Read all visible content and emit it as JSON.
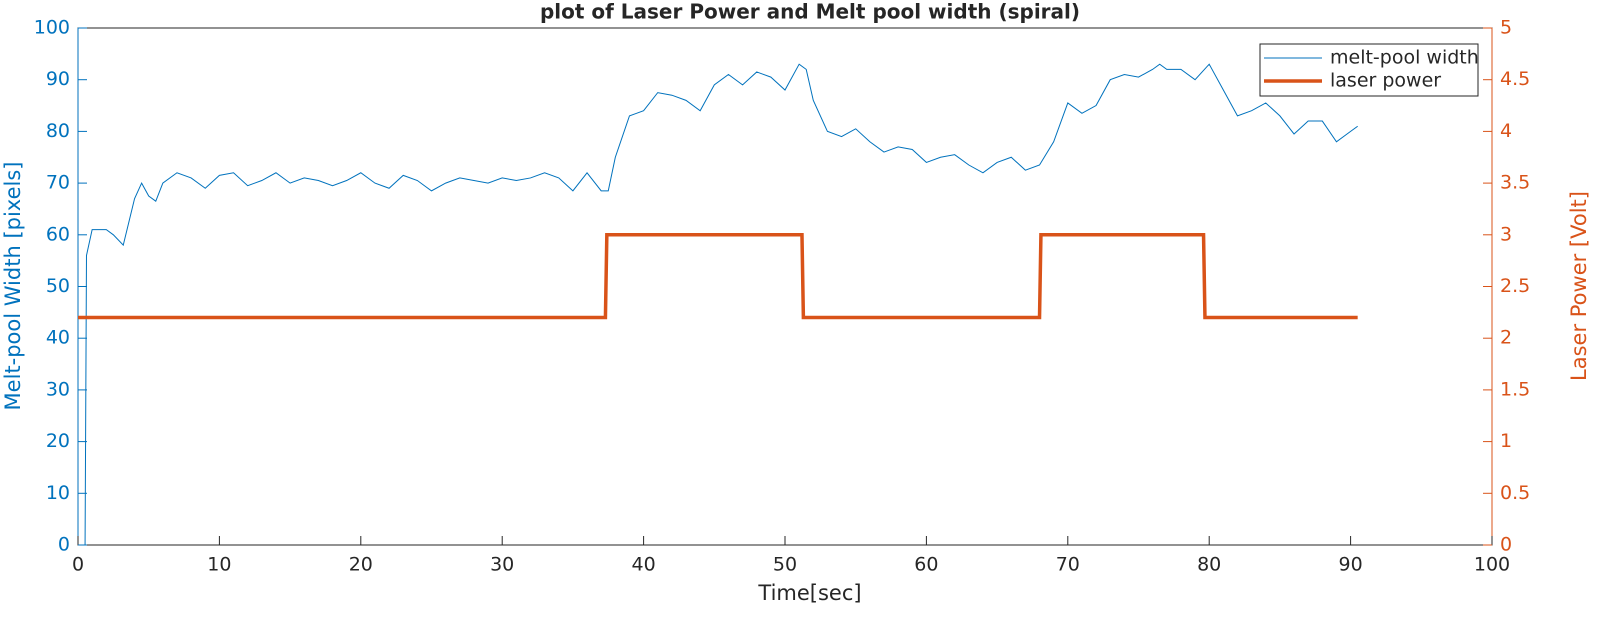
{
  "chart_data": {
    "type": "line",
    "title": "plot of Laser Power and Melt pool width (spiral)",
    "xlabel": "Time[sec]",
    "ylabel": "Melt-pool Width [pixels]",
    "y2label": "Laser Power [Volt]",
    "xlim": [
      0,
      100
    ],
    "xticks": [
      0,
      10,
      20,
      30,
      40,
      50,
      60,
      70,
      80,
      90,
      100
    ],
    "ylim": [
      0,
      100
    ],
    "yticks": [
      0,
      10,
      20,
      30,
      40,
      50,
      60,
      70,
      80,
      90,
      100
    ],
    "y2lim": [
      0,
      5
    ],
    "y2ticks": [
      0,
      0.5,
      1,
      1.5,
      2,
      2.5,
      3,
      3.5,
      4,
      4.5,
      5
    ],
    "legend": "upper right",
    "grid": false,
    "series": [
      {
        "name": "melt-pool width",
        "color": "#0072bd",
        "axis": "y",
        "width": 1,
        "x": [
          0.5,
          0.6,
          1,
          2,
          2.5,
          3.2,
          4,
          4.5,
          5,
          5.5,
          6,
          7,
          8,
          9,
          10,
          11,
          12,
          13,
          14,
          15,
          16,
          17,
          18,
          19,
          20,
          21,
          22,
          23,
          24,
          25,
          26,
          27,
          28,
          29,
          30,
          31,
          32,
          33,
          34,
          35,
          36,
          37,
          37.5,
          38,
          39,
          40,
          41,
          42,
          43,
          44,
          45,
          46,
          47,
          48,
          49,
          50,
          51,
          51.5,
          52,
          53,
          54,
          55,
          56,
          57,
          58,
          59,
          60,
          61,
          62,
          63,
          64,
          65,
          66,
          67,
          68,
          69,
          70,
          71,
          72,
          73,
          74,
          75,
          76,
          76.5,
          77,
          78,
          79,
          80,
          81,
          82,
          83,
          84,
          85,
          86,
          87,
          88,
          89,
          90,
          90.5
        ],
        "values": [
          0,
          56,
          61,
          61,
          60,
          58,
          67,
          70,
          67.5,
          66.5,
          70,
          72,
          71,
          69,
          71.5,
          72,
          69.5,
          70.5,
          72,
          70,
          71,
          70.5,
          69.5,
          70.5,
          72,
          70,
          69,
          71.5,
          70.5,
          68.5,
          70,
          71,
          70.5,
          70,
          71,
          70.5,
          71,
          72,
          71,
          68.5,
          72,
          68.5,
          68.5,
          75,
          83,
          84,
          87.5,
          87,
          86,
          84,
          89,
          91,
          89,
          91.5,
          90.5,
          88,
          93,
          92,
          86,
          80,
          79,
          80.5,
          78,
          76,
          77,
          76.5,
          74,
          75,
          75.5,
          73.5,
          72,
          74,
          75,
          72.5,
          73.5,
          78,
          85.5,
          83.5,
          85,
          90,
          91,
          90.5,
          92,
          93,
          92,
          92,
          90,
          93,
          88,
          83,
          84,
          85.5,
          83,
          79.5,
          82,
          82,
          78,
          80,
          81
        ]
      },
      {
        "name": "laser power",
        "color": "#d95319",
        "axis": "y2",
        "width": 3.5,
        "x": [
          0,
          37.3,
          37.4,
          51.2,
          51.3,
          68,
          68.1,
          79.6,
          79.7,
          90.5
        ],
        "values": [
          2.2,
          2.2,
          3,
          3,
          2.2,
          2.2,
          3,
          3,
          2.2,
          2.2
        ]
      }
    ]
  }
}
